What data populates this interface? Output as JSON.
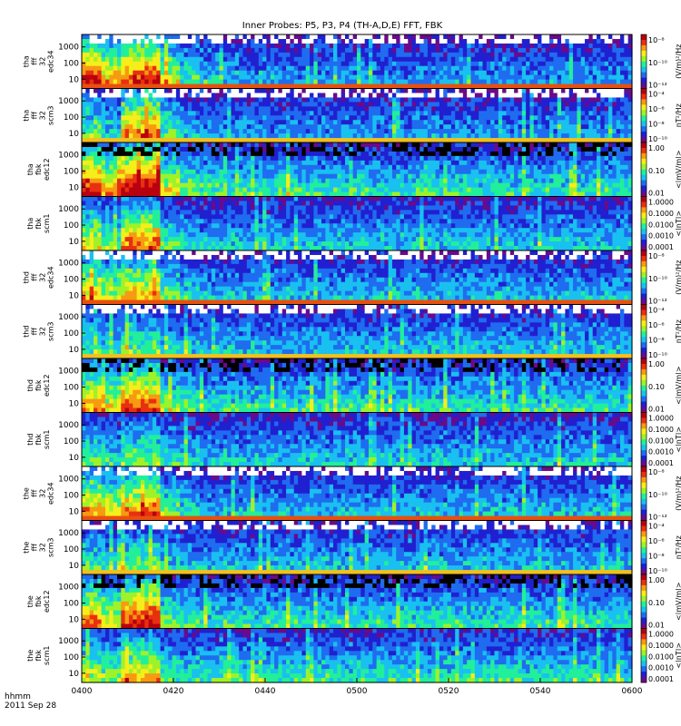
{
  "chart_data": {
    "type": "heatmap",
    "title": "Inner Probes: P5, P3, P4 (TH-A,D,E) FFT, FBK",
    "time_axis": {
      "label_line1": "hhmm",
      "label_line2": "2011 Sep 28",
      "ticks": [
        "0400",
        "0420",
        "0440",
        "0500",
        "0520",
        "0540",
        "0600"
      ],
      "range": [
        "04:00",
        "06:00"
      ]
    },
    "frequency_axis": {
      "ticks": [
        "10",
        "100",
        "1000"
      ],
      "scale": "log"
    },
    "panels": [
      {
        "probe": "tha",
        "label": [
          "tha",
          "fff",
          "32",
          "edc34"
        ],
        "product": "fff_32_edc34",
        "colorbar_label": "(V/m)²/Hz",
        "colorbar_ticks": [
          "10⁻⁸",
          "10⁻¹⁰",
          "10⁻¹²"
        ],
        "activity": [
          0.9,
          0.7,
          0.85,
          0.9,
          0.6,
          0.45,
          0.4,
          0.35,
          0.3,
          0.35,
          0.3,
          0.3,
          0.3,
          0.3,
          0.3,
          0.3,
          0.3,
          0.3,
          0.3,
          0.3,
          0.3,
          0.3,
          0.3,
          0.3,
          0.3,
          0.3,
          0.3,
          0.3
        ]
      },
      {
        "probe": "tha",
        "label": [
          "tha",
          "fff",
          "32",
          "scm3"
        ],
        "product": "fff_32_scm3",
        "colorbar_label": "nT²/Hz",
        "colorbar_ticks": [
          "10⁻⁴",
          "10⁻⁶",
          "10⁻⁸",
          "10⁻¹⁰"
        ],
        "activity": [
          0.5,
          0.4,
          0.75,
          0.8,
          0.45,
          0.35,
          0.3,
          0.3,
          0.3,
          0.3,
          0.3,
          0.3,
          0.3,
          0.3,
          0.3,
          0.3,
          0.3,
          0.3,
          0.3,
          0.3,
          0.3,
          0.3,
          0.3,
          0.3,
          0.3,
          0.3,
          0.3,
          0.3
        ]
      },
      {
        "probe": "tha",
        "label": [
          "tha",
          "fbk",
          "edc12"
        ],
        "product": "fbk_edc12",
        "colorbar_label": "<|mV/m|>",
        "colorbar_ticks": [
          "1.00",
          "0.10",
          "0.01"
        ],
        "activity": [
          0.9,
          0.7,
          0.95,
          0.95,
          0.6,
          0.5,
          0.45,
          0.4,
          0.4,
          0.4,
          0.45,
          0.4,
          0.4,
          0.4,
          0.4,
          0.4,
          0.4,
          0.45,
          0.4,
          0.4,
          0.4,
          0.4,
          0.4,
          0.4,
          0.4,
          0.4,
          0.4,
          0.4
        ]
      },
      {
        "probe": "tha",
        "label": [
          "tha",
          "fbk",
          "scm1"
        ],
        "product": "fbk_scm1",
        "colorbar_label": "<|nT|>",
        "colorbar_ticks": [
          "1.0000",
          "0.1000",
          "0.0100",
          "0.0010",
          "0.0001"
        ],
        "activity": [
          0.6,
          0.5,
          0.75,
          0.75,
          0.45,
          0.4,
          0.35,
          0.35,
          0.35,
          0.35,
          0.35,
          0.35,
          0.35,
          0.35,
          0.35,
          0.35,
          0.35,
          0.35,
          0.35,
          0.35,
          0.35,
          0.35,
          0.35,
          0.35,
          0.35,
          0.35,
          0.35,
          0.35
        ]
      },
      {
        "probe": "thd",
        "label": [
          "thd",
          "fff",
          "32",
          "edc34"
        ],
        "product": "fff_32_edc34",
        "colorbar_label": "(V/m)²/Hz",
        "colorbar_ticks": [
          "10⁻⁸",
          "10⁻¹⁰",
          "10⁻¹²"
        ],
        "activity": [
          0.7,
          0.6,
          0.7,
          0.7,
          0.5,
          0.4,
          0.35,
          0.35,
          0.35,
          0.35,
          0.35,
          0.35,
          0.35,
          0.35,
          0.35,
          0.35,
          0.35,
          0.35,
          0.35,
          0.35,
          0.35,
          0.35,
          0.35,
          0.35,
          0.35,
          0.35,
          0.35,
          0.35
        ]
      },
      {
        "probe": "thd",
        "label": [
          "thd",
          "fff",
          "32",
          "scm3"
        ],
        "product": "fff_32_scm3",
        "colorbar_label": "nT²/Hz",
        "colorbar_ticks": [
          "10⁻⁴",
          "10⁻⁶",
          "10⁻⁸",
          "10⁻¹⁰"
        ],
        "activity": [
          0.45,
          0.4,
          0.5,
          0.5,
          0.4,
          0.35,
          0.35,
          0.35,
          0.35,
          0.35,
          0.35,
          0.35,
          0.35,
          0.35,
          0.35,
          0.35,
          0.35,
          0.35,
          0.35,
          0.35,
          0.35,
          0.35,
          0.35,
          0.35,
          0.35,
          0.35,
          0.35,
          0.35
        ]
      },
      {
        "probe": "thd",
        "label": [
          "thd",
          "fbk",
          "edc12"
        ],
        "product": "fbk_edc12",
        "colorbar_label": "<|mV/m|>",
        "colorbar_ticks": [
          "1.00",
          "0.10",
          "0.01"
        ],
        "activity": [
          0.7,
          0.6,
          0.8,
          0.8,
          0.5,
          0.45,
          0.4,
          0.4,
          0.4,
          0.4,
          0.4,
          0.4,
          0.4,
          0.4,
          0.4,
          0.4,
          0.4,
          0.4,
          0.4,
          0.4,
          0.4,
          0.4,
          0.4,
          0.4,
          0.4,
          0.4,
          0.4,
          0.4
        ]
      },
      {
        "probe": "thd",
        "label": [
          "thd",
          "fbk",
          "scm1"
        ],
        "product": "fbk_scm1",
        "colorbar_label": "<|nT|>",
        "colorbar_ticks": [
          "1.0000",
          "0.1000",
          "0.0100",
          "0.0010",
          "0.0001"
        ],
        "activity": [
          0.45,
          0.4,
          0.5,
          0.5,
          0.4,
          0.35,
          0.35,
          0.35,
          0.35,
          0.35,
          0.35,
          0.35,
          0.35,
          0.35,
          0.35,
          0.35,
          0.35,
          0.35,
          0.35,
          0.35,
          0.35,
          0.35,
          0.35,
          0.35,
          0.35,
          0.35,
          0.35,
          0.35
        ]
      },
      {
        "probe": "the",
        "label": [
          "the",
          "fff",
          "32",
          "edc34"
        ],
        "product": "fff_32_edc34",
        "colorbar_label": "(V/m)²/Hz",
        "colorbar_ticks": [
          "10⁻⁸",
          "10⁻¹⁰",
          "10⁻¹²"
        ],
        "activity": [
          0.75,
          0.65,
          0.75,
          0.8,
          0.5,
          0.4,
          0.35,
          0.35,
          0.35,
          0.35,
          0.35,
          0.35,
          0.35,
          0.35,
          0.35,
          0.35,
          0.35,
          0.35,
          0.35,
          0.35,
          0.35,
          0.35,
          0.35,
          0.35,
          0.35,
          0.35,
          0.35,
          0.35
        ]
      },
      {
        "probe": "the",
        "label": [
          "the",
          "fff",
          "32",
          "scm3"
        ],
        "product": "fff_32_scm3",
        "colorbar_label": "nT²/Hz",
        "colorbar_ticks": [
          "10⁻⁴",
          "10⁻⁶",
          "10⁻⁸",
          "10⁻¹⁰"
        ],
        "activity": [
          0.45,
          0.4,
          0.5,
          0.5,
          0.4,
          0.35,
          0.35,
          0.35,
          0.35,
          0.35,
          0.35,
          0.35,
          0.35,
          0.35,
          0.35,
          0.35,
          0.35,
          0.35,
          0.35,
          0.35,
          0.35,
          0.35,
          0.35,
          0.35,
          0.35,
          0.35,
          0.35,
          0.35
        ]
      },
      {
        "probe": "the",
        "label": [
          "the",
          "fbk",
          "edc12"
        ],
        "product": "fbk_edc12",
        "colorbar_label": "<|mV/m|>",
        "colorbar_ticks": [
          "1.00",
          "0.10",
          "0.01"
        ],
        "activity": [
          0.75,
          0.6,
          0.85,
          0.9,
          0.5,
          0.45,
          0.4,
          0.4,
          0.4,
          0.4,
          0.4,
          0.4,
          0.4,
          0.4,
          0.4,
          0.4,
          0.4,
          0.4,
          0.4,
          0.4,
          0.4,
          0.4,
          0.4,
          0.4,
          0.4,
          0.4,
          0.4,
          0.4
        ]
      },
      {
        "probe": "the",
        "label": [
          "the",
          "fbk",
          "scm1"
        ],
        "product": "fbk_scm1",
        "colorbar_label": "<|nT|>",
        "colorbar_ticks": [
          "1.0000",
          "0.1000",
          "0.0100",
          "0.0010",
          "0.0001"
        ],
        "activity": [
          0.55,
          0.5,
          0.65,
          0.65,
          0.45,
          0.4,
          0.4,
          0.45,
          0.4,
          0.4,
          0.4,
          0.4,
          0.4,
          0.4,
          0.4,
          0.4,
          0.4,
          0.4,
          0.4,
          0.4,
          0.4,
          0.4,
          0.4,
          0.4,
          0.4,
          0.4,
          0.4,
          0.4
        ]
      }
    ],
    "colormap": [
      "#6b0a8a",
      "#2020d0",
      "#1f6cf0",
      "#19c0f0",
      "#22ef9a",
      "#9ef22a",
      "#f5ee1a",
      "#f79a12",
      "#e83010",
      "#b8000f"
    ]
  }
}
